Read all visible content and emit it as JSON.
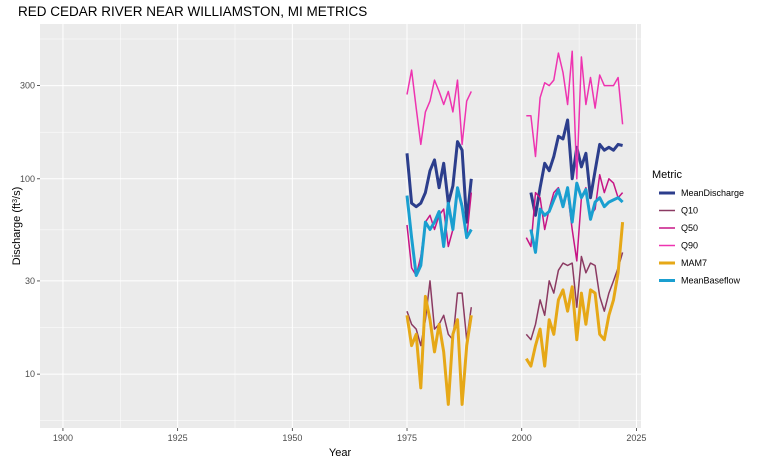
{
  "chart_data": {
    "type": "line",
    "title": "RED CEDAR RIVER NEAR WILLIAMSTON, MI  METRICS",
    "xlabel": "Year",
    "ylabel": "Discharge (ft³/s)",
    "ylabel_parts": {
      "main": "Discharge (ft",
      "sup": "3",
      "tail": "/s)"
    },
    "xlim": [
      1895,
      2026
    ],
    "ylim": [
      5.3,
      620
    ],
    "y_scale": "log10",
    "x_ticks": [
      1900,
      1925,
      1950,
      1975,
      2000,
      2025
    ],
    "y_ticks": [
      10,
      30,
      100,
      300
    ],
    "grid": true,
    "legend": {
      "title": "Metric",
      "position": "right"
    },
    "series": [
      {
        "name": "MeanDischarge",
        "color": "#2c3e8c",
        "width": 3,
        "segments": [
          {
            "x": [
              1975,
              1976,
              1977,
              1978,
              1979,
              1980,
              1981,
              1982,
              1983,
              1984,
              1985,
              1986,
              1987,
              1988,
              1989
            ],
            "y": [
              135,
              75,
              72,
              75,
              85,
              110,
              125,
              90,
              120,
              75,
              92,
              155,
              140,
              60,
              100
            ]
          },
          {
            "x": [
              2002,
              2003,
              2004,
              2005,
              2006,
              2007,
              2008,
              2009,
              2010,
              2011,
              2012,
              2013,
              2014,
              2015,
              2016,
              2017,
              2018,
              2019,
              2020,
              2021,
              2022
            ],
            "y": [
              85,
              65,
              90,
              120,
              110,
              130,
              165,
              160,
              200,
              100,
              145,
              115,
              135,
              80,
              110,
              150,
              140,
              145,
              140,
              150,
              148
            ]
          }
        ]
      },
      {
        "name": "Q10",
        "color": "#8b3a62",
        "width": 1.5,
        "segments": [
          {
            "x": [
              1975,
              1976,
              1977,
              1978,
              1979,
              1980,
              1981,
              1982,
              1983,
              1984,
              1985,
              1986,
              1987,
              1988,
              1989
            ],
            "y": [
              21,
              18,
              17,
              14,
              19,
              30,
              17,
              18,
              20,
              16,
              15,
              26,
              26,
              15,
              22
            ]
          },
          {
            "x": [
              2001,
              2002,
              2003,
              2004,
              2005,
              2006,
              2007,
              2008,
              2009,
              2010,
              2011,
              2012,
              2013,
              2014,
              2015,
              2016,
              2017,
              2018,
              2019,
              2020,
              2021,
              2022
            ],
            "y": [
              16,
              15,
              18,
              24,
              20,
              30,
              26,
              34,
              37,
              36,
              37,
              22,
              40,
              33,
              37,
              36,
              25,
              21,
              26,
              30,
              35,
              42
            ]
          }
        ]
      },
      {
        "name": "Q50",
        "color": "#c71585",
        "width": 1.5,
        "segments": [
          {
            "x": [
              1975,
              1976,
              1977,
              1978,
              1979,
              1980,
              1981,
              1982,
              1983,
              1984,
              1985,
              1986,
              1987,
              1988,
              1989
            ],
            "y": [
              58,
              35,
              32,
              40,
              60,
              65,
              55,
              65,
              70,
              45,
              55,
              85,
              75,
              50,
              85
            ]
          },
          {
            "x": [
              2001,
              2002,
              2003,
              2004,
              2005,
              2006,
              2007,
              2008,
              2009,
              2010,
              2011,
              2012,
              2013,
              2014,
              2015,
              2016,
              2017,
              2018,
              2019,
              2020,
              2021,
              2022
            ],
            "y": [
              50,
              45,
              85,
              80,
              55,
              70,
              85,
              90,
              75,
              85,
              55,
              38,
              80,
              90,
              65,
              70,
              105,
              85,
              100,
              95,
              80,
              85
            ]
          }
        ]
      },
      {
        "name": "Q90",
        "color": "#ee34b0",
        "width": 1.5,
        "segments": [
          {
            "x": [
              1975,
              1976,
              1977,
              1978,
              1979,
              1980,
              1981,
              1982,
              1983,
              1984,
              1985,
              1986,
              1987,
              1988,
              1989
            ],
            "y": [
              270,
              360,
              230,
              150,
              220,
              250,
              320,
              280,
              240,
              280,
              220,
              320,
              150,
              250,
              280
            ]
          },
          {
            "x": [
              2001,
              2002,
              2003,
              2004,
              2005,
              2006,
              2007,
              2008,
              2009,
              2010,
              2011,
              2012,
              2013,
              2014,
              2015,
              2016,
              2017,
              2018,
              2019,
              2020,
              2021,
              2022
            ],
            "y": [
              210,
              210,
              130,
              260,
              310,
              300,
              320,
              440,
              350,
              240,
              450,
              100,
              420,
              240,
              330,
              230,
              340,
              300,
              300,
              300,
              330,
              190
            ]
          }
        ]
      },
      {
        "name": "MAM7",
        "color": "#e6a817",
        "width": 3,
        "segments": [
          {
            "x": [
              1975,
              1976,
              1977,
              1978,
              1979,
              1980,
              1981,
              1982,
              1983,
              1984,
              1985,
              1986,
              1987,
              1988,
              1989
            ],
            "y": [
              20,
              14,
              16,
              8.5,
              25,
              19,
              13,
              18,
              13,
              7,
              16,
              19,
              7,
              14,
              20
            ]
          },
          {
            "x": [
              2001,
              2002,
              2003,
              2004,
              2005,
              2006,
              2007,
              2008,
              2009,
              2010,
              2011,
              2012,
              2013,
              2014,
              2015,
              2016,
              2017,
              2018,
              2019,
              2020,
              2021,
              2022
            ],
            "y": [
              12,
              11,
              14,
              17,
              11,
              19,
              16,
              24,
              27,
              21,
              28,
              15,
              26,
              18,
              27,
              26,
              16,
              15,
              20,
              24,
              33,
              60
            ]
          }
        ]
      },
      {
        "name": "MeanBaseflow",
        "color": "#1a9fd0",
        "width": 3,
        "segments": [
          {
            "x": [
              1975,
              1976,
              1977,
              1978,
              1979,
              1980,
              1981,
              1982,
              1983,
              1984,
              1985,
              1986,
              1987,
              1988,
              1989
            ],
            "y": [
              82,
              50,
              32,
              36,
              60,
              55,
              60,
              68,
              45,
              75,
              55,
              90,
              72,
              50,
              55
            ]
          },
          {
            "x": [
              2002,
              2003,
              2004,
              2005,
              2006,
              2007,
              2008,
              2009,
              2010,
              2011,
              2012,
              2013,
              2014,
              2015,
              2016,
              2017,
              2018,
              2019,
              2020,
              2021,
              2022
            ],
            "y": [
              55,
              42,
              70,
              65,
              68,
              78,
              88,
              72,
              90,
              60,
              95,
              80,
              88,
              62,
              76,
              80,
              72,
              76,
              78,
              80,
              76
            ]
          }
        ]
      }
    ]
  }
}
